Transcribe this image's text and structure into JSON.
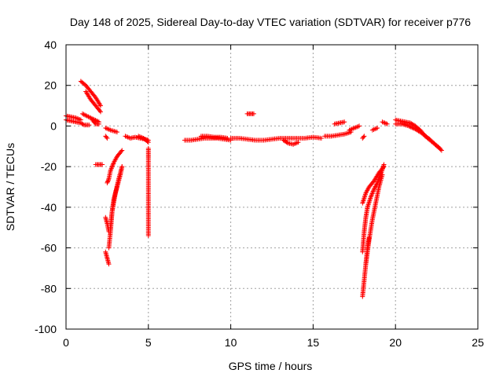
{
  "chart_data": {
    "type": "scatter",
    "title": "Day 148 of 2025, Sidereal Day-to-day VTEC variation (SDTVAR) for receiver p776",
    "xlabel": "GPS time / hours",
    "ylabel": "SDTVAR / TECUs",
    "xlim": [
      0,
      25
    ],
    "ylim": [
      -100,
      40
    ],
    "xticks": [
      0,
      5,
      10,
      15,
      20,
      25
    ],
    "yticks": [
      -100,
      -80,
      -60,
      -40,
      -20,
      0,
      20,
      40
    ],
    "grid": true,
    "marker": "+",
    "series_color": "#ff0000",
    "segments": [
      {
        "x": [
          0.0,
          0.3,
          0.6,
          0.9
        ],
        "y": [
          5,
          4.5,
          4,
          3
        ]
      },
      {
        "x": [
          0.0,
          0.3,
          0.6,
          0.9,
          1.1,
          1.4
        ],
        "y": [
          3,
          2.5,
          2,
          1.5,
          0.5,
          0.5
        ]
      },
      {
        "x": [
          0.9,
          1.2,
          1.5,
          1.8,
          2.1
        ],
        "y": [
          22,
          20,
          17,
          14,
          10
        ]
      },
      {
        "x": [
          1.2,
          1.5,
          1.8,
          2.1
        ],
        "y": [
          17,
          13,
          10,
          7
        ]
      },
      {
        "x": [
          1.0,
          1.5,
          2.0
        ],
        "y": [
          6,
          4,
          2
        ]
      },
      {
        "x": [
          1.6,
          1.8,
          2.0
        ],
        "y": [
          3,
          1,
          1
        ]
      },
      {
        "x": [
          1.8,
          2.0,
          2.2
        ],
        "y": [
          -19,
          -19,
          -19
        ]
      },
      {
        "x": [
          2.4,
          2.7,
          3.1
        ],
        "y": [
          -1,
          -2,
          -3
        ]
      },
      {
        "x": [
          2.4,
          2.5
        ],
        "y": [
          -5,
          -6
        ]
      },
      {
        "x": [
          2.4,
          2.5,
          2.6
        ],
        "y": [
          -45,
          -48,
          -52
        ]
      },
      {
        "x": [
          2.4,
          2.5,
          2.6
        ],
        "y": [
          -62,
          -65,
          -68
        ]
      },
      {
        "x": [
          2.5,
          2.6,
          2.7,
          2.9,
          3.1,
          3.4
        ],
        "y": [
          -28,
          -26,
          -22,
          -18,
          -15,
          -12
        ]
      },
      {
        "x": [
          2.6,
          2.7,
          2.8,
          3.0,
          3.2,
          3.4
        ],
        "y": [
          -60,
          -52,
          -42,
          -33,
          -26,
          -20
        ]
      },
      {
        "x": [
          2.7,
          2.8,
          2.9,
          3.1,
          3.3,
          3.4
        ],
        "y": [
          -50,
          -42,
          -36,
          -30,
          -24,
          -20
        ]
      },
      {
        "x": [
          3.6,
          3.9,
          4.2,
          4.5,
          4.8,
          5.0
        ],
        "y": [
          -5,
          -6,
          -5.5,
          -6,
          -6.5,
          -7
        ]
      },
      {
        "x": [
          4.4,
          4.7,
          5.0
        ],
        "y": [
          -5,
          -6,
          -8
        ]
      },
      {
        "x": [
          5.0,
          5.0,
          5.0,
          5.0
        ],
        "y": [
          -11,
          -16,
          -25,
          -54
        ]
      },
      {
        "x": [
          7.2,
          7.6,
          8.0,
          8.4,
          8.8,
          9.2,
          9.6,
          10.0
        ],
        "y": [
          -7,
          -7,
          -6.5,
          -6,
          -6,
          -6,
          -6.5,
          -7
        ]
      },
      {
        "x": [
          8.2,
          8.6,
          9.0,
          9.4,
          9.8
        ],
        "y": [
          -5,
          -5,
          -5.5,
          -5.5,
          -6
        ]
      },
      {
        "x": [
          10.0,
          10.5,
          11.0,
          11.5,
          12.0,
          12.5,
          13.0,
          13.5
        ],
        "y": [
          -6,
          -6,
          -6.5,
          -7,
          -7,
          -6.5,
          -6,
          -6
        ]
      },
      {
        "x": [
          11.0,
          11.2,
          11.4
        ],
        "y": [
          6,
          6,
          6
        ]
      },
      {
        "x": [
          13.2,
          13.5,
          13.8,
          14.1
        ],
        "y": [
          -7,
          -8.5,
          -9,
          -8
        ]
      },
      {
        "x": [
          13.5,
          14.0,
          14.5,
          15.0,
          15.5
        ],
        "y": [
          -6,
          -6,
          -6,
          -5.5,
          -6
        ]
      },
      {
        "x": [
          15.7,
          16.1,
          16.5,
          16.9,
          17.3
        ],
        "y": [
          -5,
          -5,
          -4.5,
          -4,
          -3
        ]
      },
      {
        "x": [
          16.3,
          16.6,
          16.9
        ],
        "y": [
          1,
          1.5,
          2
        ]
      },
      {
        "x": [
          17.2,
          17.5,
          17.8
        ],
        "y": [
          -2,
          -1,
          0
        ]
      },
      {
        "x": [
          18.0,
          18.1
        ],
        "y": [
          -6,
          -5
        ]
      },
      {
        "x": [
          18.6,
          18.9
        ],
        "y": [
          -2,
          -1
        ]
      },
      {
        "x": [
          19.2,
          19.5
        ],
        "y": [
          2,
          1
        ]
      },
      {
        "x": [
          18.0,
          18.2,
          18.4,
          18.7,
          19.0,
          19.3
        ],
        "y": [
          -38,
          -33,
          -30,
          -27,
          -23,
          -20
        ]
      },
      {
        "x": [
          18.0,
          18.1,
          18.2,
          18.3,
          18.5,
          18.7,
          18.9,
          19.1,
          19.3
        ],
        "y": [
          -62,
          -52,
          -45,
          -40,
          -35,
          -31,
          -28,
          -24,
          -19
        ]
      },
      {
        "x": [
          18.0,
          18.1,
          18.2,
          18.3,
          18.4
        ],
        "y": [
          -84,
          -76,
          -68,
          -60,
          -55
        ]
      },
      {
        "x": [
          18.2,
          18.4,
          18.6,
          18.8,
          19.0,
          19.2
        ],
        "y": [
          -68,
          -56,
          -46,
          -38,
          -30,
          -24
        ]
      },
      {
        "x": [
          20.0,
          20.3,
          20.6,
          20.9,
          21.2,
          21.5,
          21.8,
          22.1,
          22.4,
          22.7
        ],
        "y": [
          3,
          2.5,
          2,
          1.5,
          0,
          -2,
          -5,
          -7,
          -9,
          -11
        ]
      },
      {
        "x": [
          20.0,
          20.4,
          20.8,
          21.2,
          21.6,
          22.0,
          22.4,
          22.8
        ],
        "y": [
          1,
          1,
          0,
          -1.5,
          -3.5,
          -6,
          -9,
          -12
        ]
      }
    ]
  }
}
